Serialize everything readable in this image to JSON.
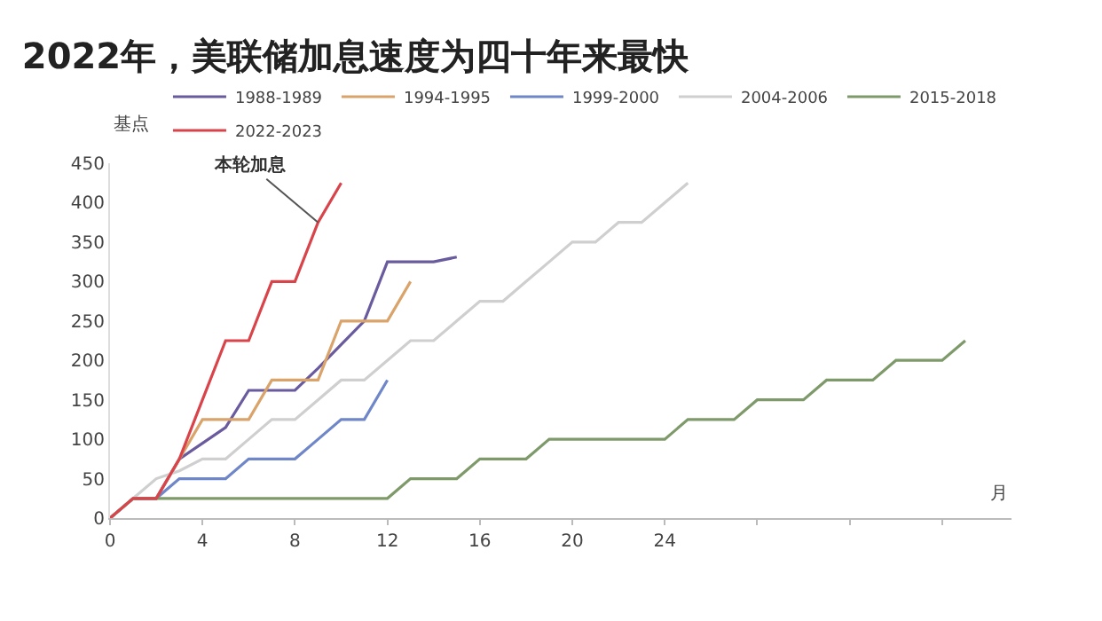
{
  "chart_data": {
    "type": "line",
    "title": "2022年，美联储加息速度为四十年来最快",
    "ylabel": "基点",
    "xlabel": "月",
    "series": [
      {
        "name": "1988-1989",
        "color": "#6a5a9e",
        "x": [
          0,
          1,
          2,
          3,
          4,
          5,
          6,
          7,
          8,
          9,
          10,
          11,
          12,
          13,
          14,
          15
        ],
        "values": [
          0,
          25,
          25,
          75,
          95,
          115,
          162,
          162,
          162,
          190,
          220,
          250,
          325,
          325,
          325,
          331
        ]
      },
      {
        "name": "1994-1995",
        "color": "#d9a36a",
        "x": [
          0,
          1,
          2,
          3,
          4,
          5,
          6,
          7,
          8,
          9,
          10,
          11,
          12,
          13
        ],
        "values": [
          0,
          25,
          25,
          75,
          125,
          125,
          125,
          175,
          175,
          175,
          250,
          250,
          250,
          300
        ]
      },
      {
        "name": "1999-2000",
        "color": "#6f86c8",
        "x": [
          0,
          1,
          2,
          3,
          4,
          5,
          6,
          7,
          8,
          9,
          10,
          11,
          12
        ],
        "values": [
          0,
          25,
          25,
          50,
          50,
          50,
          75,
          75,
          75,
          100,
          125,
          125,
          175
        ]
      },
      {
        "name": "2004-2006",
        "color": "#cfcfcf",
        "x": [
          0,
          1,
          2,
          3,
          4,
          5,
          6,
          7,
          8,
          9,
          10,
          11,
          12,
          13,
          14,
          15,
          16,
          17,
          18,
          19,
          20,
          21,
          22,
          23,
          24,
          25
        ],
        "values": [
          0,
          25,
          50,
          60,
          75,
          75,
          100,
          125,
          125,
          150,
          175,
          175,
          200,
          225,
          225,
          250,
          275,
          275,
          300,
          325,
          350,
          350,
          375,
          375,
          400,
          425
        ]
      },
      {
        "name": "2015-2018",
        "color": "#7f9a6a",
        "x": [
          0,
          1,
          12,
          13,
          15,
          16,
          18,
          19,
          24,
          25,
          27,
          28,
          30,
          31,
          33,
          34,
          36,
          37
        ],
        "values": [
          0,
          25,
          25,
          50,
          50,
          75,
          75,
          100,
          100,
          125,
          125,
          150,
          150,
          175,
          175,
          200,
          200,
          225
        ]
      },
      {
        "name": "2022-2023",
        "color": "#d9434a",
        "x": [
          0,
          1,
          2,
          3,
          4,
          5,
          6,
          7,
          8,
          9,
          10
        ],
        "values": [
          0,
          25,
          25,
          75,
          150,
          225,
          225,
          300,
          300,
          375,
          425
        ]
      }
    ],
    "annotations": [
      {
        "text": "本轮加息",
        "x": 9,
        "y": 375
      }
    ],
    "xlim": [
      0,
      39
    ],
    "xticks": [
      0,
      4,
      8,
      12,
      16,
      20,
      24,
      {
        "value": 28,
        "label": null
      },
      {
        "value": 32,
        "label": null
      },
      {
        "value": 36,
        "label": null
      }
    ],
    "ylim": [
      0,
      450
    ],
    "yticks": [
      0,
      50,
      100,
      150,
      200,
      250,
      300,
      350,
      400,
      450
    ],
    "legend": "top",
    "marker": "none",
    "line_style": "solid"
  }
}
